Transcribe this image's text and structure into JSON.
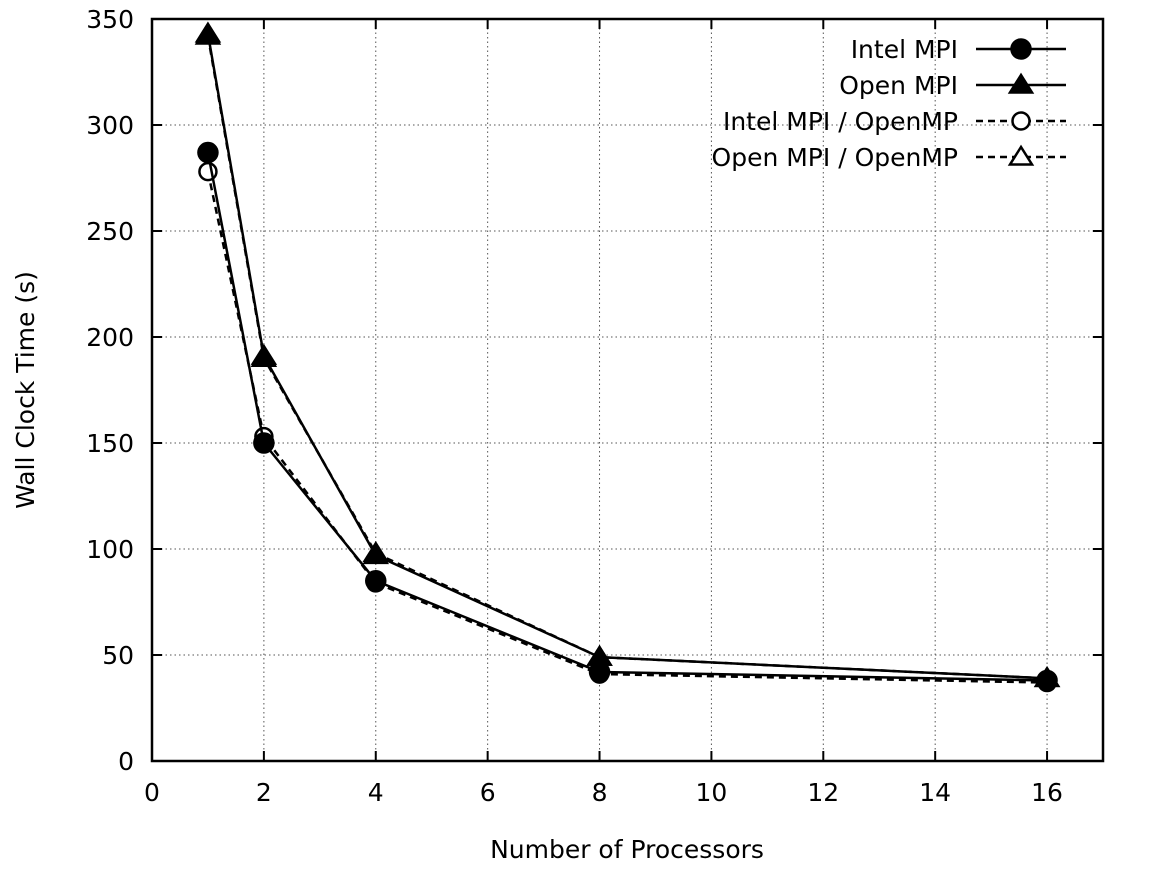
{
  "chart_data": {
    "type": "line",
    "title": "",
    "xlabel": "Number of Processors",
    "ylabel": "Wall Clock Time (s)",
    "xlim": [
      0,
      17
    ],
    "ylim": [
      0,
      350
    ],
    "xticks": [
      0,
      2,
      4,
      6,
      8,
      10,
      12,
      14,
      16
    ],
    "yticks": [
      0,
      50,
      100,
      150,
      200,
      250,
      300,
      350
    ],
    "grid": true,
    "legend_position": "top-right",
    "x": [
      1,
      2,
      4,
      8,
      16
    ],
    "series": [
      {
        "name": "Intel MPI",
        "values": [
          287,
          150,
          85,
          42,
          38
        ],
        "marker": "filled-circle",
        "line": "solid"
      },
      {
        "name": "Open MPI",
        "values": [
          343,
          191,
          97,
          49,
          39
        ],
        "marker": "filled-triangle",
        "line": "solid"
      },
      {
        "name": "Intel MPI / OpenMP",
        "values": [
          278,
          153,
          84,
          41,
          37
        ],
        "marker": "open-circle",
        "line": "dashed"
      },
      {
        "name": "Open MPI / OpenMP",
        "values": [
          342,
          190,
          98,
          49,
          39
        ],
        "marker": "open-triangle",
        "line": "dashed"
      }
    ],
    "colors": {
      "line": "#000000",
      "grid": "#555555",
      "background": "#ffffff"
    }
  }
}
